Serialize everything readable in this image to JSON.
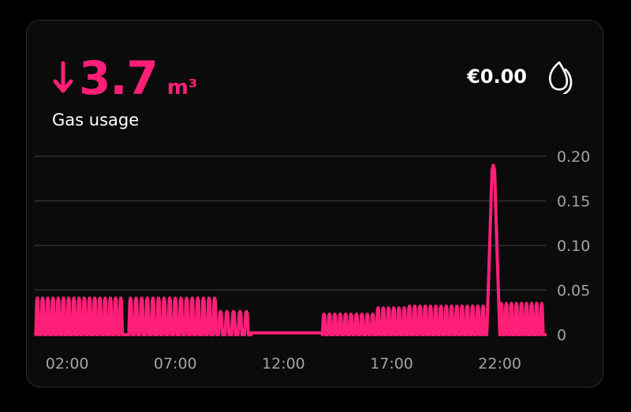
{
  "header": {
    "delta_value": "3.7",
    "delta_unit": "m³",
    "label": "Gas usage",
    "cost": "€0.00",
    "trend_icon": "arrow-down-icon",
    "type_icon": "flame-icon"
  },
  "colors": {
    "accent": "#ff1f78",
    "background": "#0b0b0b",
    "text": "#ffffff",
    "axis": "#a3a3a3"
  },
  "chart_data": {
    "type": "line",
    "ylim": [
      0,
      0.2
    ],
    "yticks": [
      "0.20",
      "0.15",
      "0.10",
      "0.05",
      "0"
    ],
    "xticks": [
      "02:00",
      "07:00",
      "12:00",
      "17:00",
      "22:00"
    ],
    "xlim_hours": [
      0.5,
      24.2
    ],
    "segments": [
      {
        "start": 0.55,
        "end": 4.65,
        "count": 17,
        "amp": 0.041
      },
      {
        "start": 4.85,
        "end": 9.0,
        "count": 16,
        "amp": 0.041
      },
      {
        "start": 9.0,
        "end": 10.5,
        "count": 5,
        "amp": 0.026
      },
      {
        "start": 13.8,
        "end": 16.3,
        "count": 10,
        "amp": 0.023
      },
      {
        "start": 16.3,
        "end": 17.75,
        "count": 6,
        "amp": 0.03
      },
      {
        "start": 17.75,
        "end": 21.4,
        "count": 15,
        "amp": 0.032
      },
      {
        "start": 22.0,
        "end": 24.1,
        "count": 9,
        "amp": 0.035
      }
    ],
    "flat_segments": [
      {
        "start": 10.5,
        "end": 13.8,
        "value": 0.002
      }
    ],
    "spike": {
      "center": 21.7,
      "value": 0.19
    }
  }
}
